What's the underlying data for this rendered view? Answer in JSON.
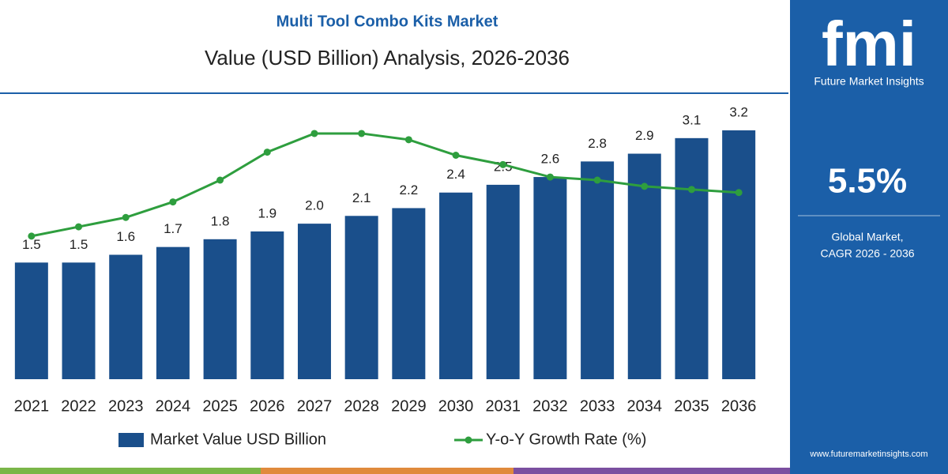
{
  "chart_data": {
    "type": "bar",
    "title": "Multi Tool Combo Kits Market",
    "subtitle": "Value (USD Billion) Analysis, 2026-2036",
    "categories": [
      "2021",
      "2022",
      "2023",
      "2024",
      "2025",
      "2026",
      "2027",
      "2028",
      "2029",
      "2030",
      "2031",
      "2032",
      "2033",
      "2034",
      "2035",
      "2036"
    ],
    "series": [
      {
        "name": "Market Value USD Billion",
        "type": "bar",
        "color": "#1a4f8b",
        "values": [
          1.5,
          1.5,
          1.6,
          1.7,
          1.8,
          1.9,
          2.0,
          2.1,
          2.2,
          2.4,
          2.5,
          2.6,
          2.8,
          2.9,
          3.1,
          3.2
        ],
        "value_labels": [
          "1.5",
          "1.5",
          "1.6",
          "1.7",
          "1.8",
          "1.9",
          "2.0",
          "2.1",
          "2.2",
          "2.4",
          "2.5",
          "2.6",
          "2.8",
          "2.9",
          "3.1",
          "3.2"
        ]
      },
      {
        "name": "Y-o-Y Growth Rate (%)",
        "type": "line",
        "axis": "y2",
        "color": "#2e9e3e",
        "values": [
          4.6,
          4.9,
          5.2,
          5.7,
          6.4,
          7.3,
          7.9,
          7.9,
          7.7,
          7.2,
          6.9,
          6.5,
          6.4,
          6.2,
          6.1,
          6.0
        ]
      }
    ],
    "ylim": [
      0,
      3.2
    ],
    "y2lim": [
      0,
      8
    ],
    "grid": false,
    "legend": "bottom"
  },
  "sidebar": {
    "logo": "fmi",
    "brand": "Future Market Insights",
    "cagr": "5.5%",
    "cagr_label": [
      "Global Market,",
      "CAGR 2026 - 2036"
    ],
    "url": "www.futuremarketinsights.com"
  }
}
